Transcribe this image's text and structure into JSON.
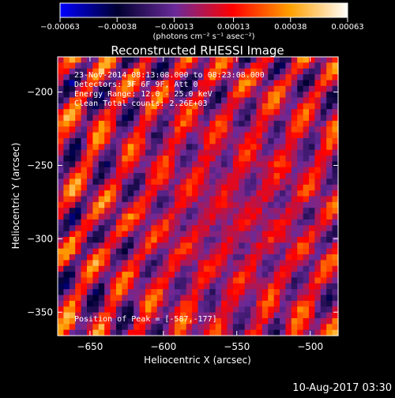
{
  "chart_data": {
    "type": "heatmap",
    "title": "Reconstructed RHESSI Image",
    "xlabel": "Heliocentric X (arcsec)",
    "ylabel": "Heliocentric Y (arcsec)",
    "xlim": [
      -672,
      -481
    ],
    "ylim": [
      -366,
      -176
    ],
    "x_ticks": [
      -650,
      -600,
      -550,
      -500
    ],
    "y_ticks": [
      -350,
      -300,
      -250,
      -200
    ],
    "x_tick_labels": [
      "−650",
      "−600",
      "−550",
      "−500"
    ],
    "y_tick_labels": [
      "−350",
      "−300",
      "−250",
      "−200"
    ],
    "colorbar": {
      "min": -0.00063,
      "max": 0.00063,
      "ticks": [
        -0.00063,
        -0.00038,
        -0.00013,
        0.00013,
        0.00038,
        0.00063
      ],
      "tick_labels": [
        "−0.00063",
        "−0.00038",
        "−0.00013",
        "0.00013",
        "0.00038",
        "0.00063"
      ],
      "unit_label": "(photons cm⁻² s⁻¹ asec⁻²)",
      "colors": [
        "#0000ff",
        "#000030",
        "#6a2a9a",
        "#ff0000",
        "#ffa000",
        "#ffffff"
      ]
    },
    "annotations": [
      "23-Nov-2014 08:13:08.000 to 08:23:08.000",
      "Detectors: 3F 6F 9F, Att 0",
      "Energy Range: 12.0 - 25.0 keV",
      "Clean     Total counts: 2.26E+03"
    ],
    "peak_label": "Position of Peak = [-587,-177]",
    "peak": {
      "x": -587,
      "y": -177
    },
    "grid": false,
    "pattern": {
      "description": "diagonal fringe pattern of positive (red-yellow) and near-zero/negative (purple-blue) values",
      "nx": 48,
      "ny": 48
    }
  },
  "footer_timestamp": "10-Aug-2017 03:30"
}
